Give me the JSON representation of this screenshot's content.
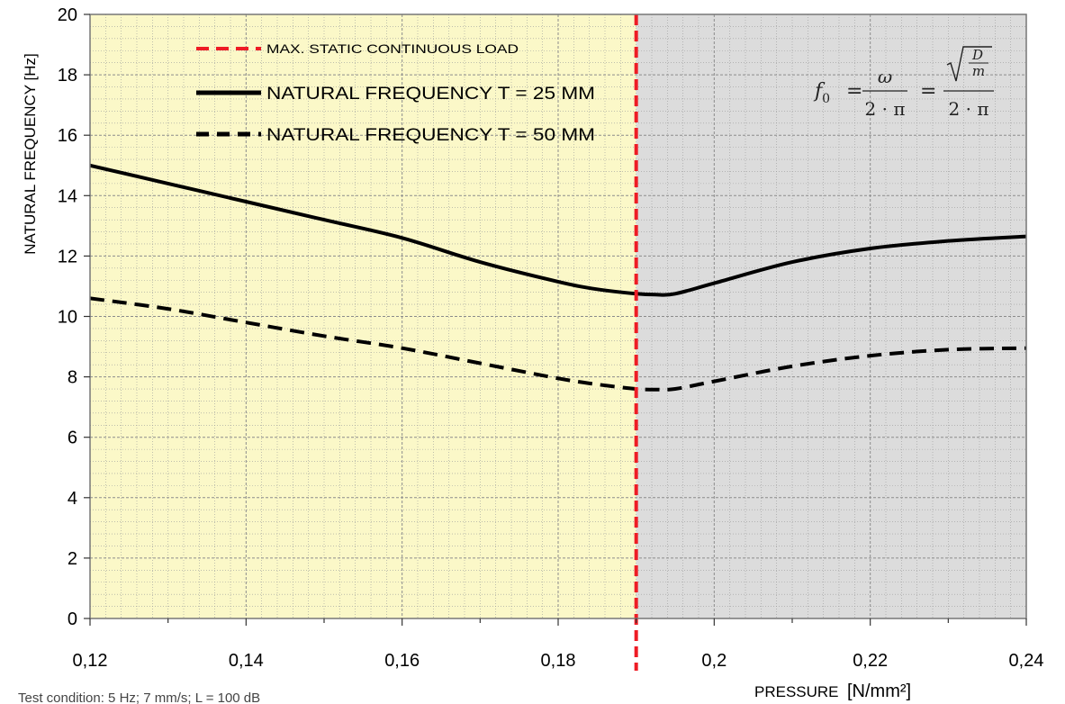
{
  "chart_data": {
    "type": "line",
    "xlabel": "PRESSURE",
    "xlabel_unit": "[N/mm²]",
    "ylabel": "NATURAL FREQUENCY [Hz]",
    "xlim": [
      0.12,
      0.24
    ],
    "ylim": [
      0,
      20
    ],
    "x_ticks": [
      0.12,
      0.14,
      0.16,
      0.18,
      0.2,
      0.22,
      0.24
    ],
    "x_tick_labels": [
      "0,12",
      "0,14",
      "0,16",
      "0,18",
      "0,2",
      "0,22",
      "0,24"
    ],
    "y_ticks": [
      0,
      2,
      4,
      6,
      8,
      10,
      12,
      14,
      16,
      18,
      20
    ],
    "y_tick_labels": [
      "0",
      "2",
      "4",
      "6",
      "8",
      "10",
      "12",
      "14",
      "16",
      "18",
      "20"
    ],
    "grid": true,
    "legend_position": "top-left",
    "regions": [
      {
        "x0": 0.12,
        "x1": 0.19,
        "color": "#fbf8c8"
      },
      {
        "x0": 0.19,
        "x1": 0.24,
        "color": "#dcdcdc"
      }
    ],
    "vlines": [
      {
        "name": "MAX. STATIC CONTINUOUS LOAD",
        "x": 0.19,
        "color": "#ee1c25",
        "style": "dashed"
      }
    ],
    "series": [
      {
        "name": "NATURAL FREQUENCY T = 25 MM",
        "color": "#000000",
        "style": "solid",
        "x": [
          0.12,
          0.13,
          0.14,
          0.15,
          0.16,
          0.17,
          0.18,
          0.185,
          0.19,
          0.1925,
          0.195,
          0.2,
          0.21,
          0.22,
          0.23,
          0.24
        ],
        "y": [
          15.0,
          14.4,
          13.8,
          13.2,
          12.6,
          11.8,
          11.15,
          10.9,
          10.75,
          10.72,
          10.75,
          11.1,
          11.8,
          12.25,
          12.5,
          12.65
        ]
      },
      {
        "name": "NATURAL FREQUENCY T = 50 MM",
        "color": "#000000",
        "style": "dashed",
        "x": [
          0.12,
          0.13,
          0.14,
          0.15,
          0.16,
          0.17,
          0.18,
          0.185,
          0.19,
          0.1925,
          0.195,
          0.2,
          0.21,
          0.22,
          0.23,
          0.24
        ],
        "y": [
          10.6,
          10.25,
          9.8,
          9.35,
          8.95,
          8.45,
          7.95,
          7.75,
          7.6,
          7.58,
          7.6,
          7.85,
          8.35,
          8.7,
          8.9,
          8.95
        ]
      }
    ],
    "annotations": {
      "formula": {
        "f0": "f",
        "f0_sub": "0",
        "eq": "=",
        "num1": "ω",
        "den1": "2 · π",
        "num2_top": "D",
        "num2_bottom": "m",
        "den2": "2 · π"
      },
      "footnote": "Test condition: 5 Hz; 7 mm/s; L = 100 dB"
    }
  }
}
